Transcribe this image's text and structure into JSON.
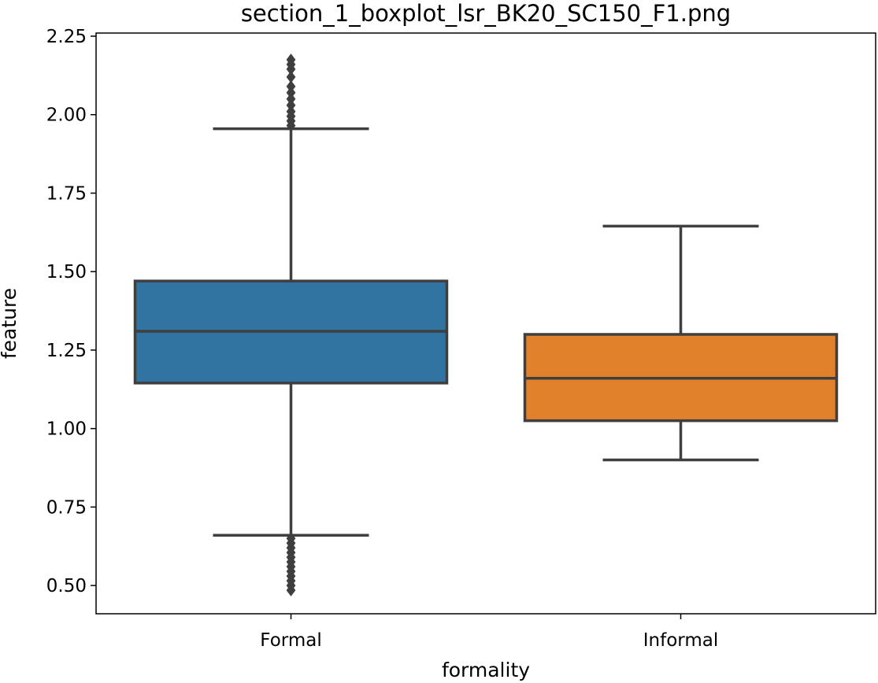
{
  "chart_data": {
    "type": "boxplot",
    "title": "section_1_boxplot_lsr_BK20_SC150_F1.png",
    "xlabel": "formality",
    "ylabel": "feature",
    "ylim": [
      0.41,
      2.26
    ],
    "yticks": [
      0.5,
      0.75,
      1.0,
      1.25,
      1.5,
      1.75,
      2.0,
      2.25
    ],
    "ytick_labels": [
      "0.50",
      "0.75",
      "1.00",
      "1.25",
      "1.50",
      "1.75",
      "2.00",
      "2.25"
    ],
    "grid": false,
    "categories": [
      "Formal",
      "Informal"
    ],
    "boxes": [
      {
        "category": "Formal",
        "whisker_low": 0.66,
        "q1": 1.145,
        "median": 1.31,
        "q3": 1.47,
        "whisker_high": 1.955,
        "color": "#3274a1",
        "outliers": [
          0.485,
          0.5,
          0.515,
          0.53,
          0.545,
          0.56,
          0.575,
          0.59,
          0.605,
          0.62,
          0.635,
          0.65,
          1.965,
          1.98,
          1.995,
          2.01,
          2.03,
          2.05,
          2.07,
          2.09,
          2.12,
          2.145,
          2.16,
          2.175
        ]
      },
      {
        "category": "Informal",
        "whisker_low": 0.9,
        "q1": 1.025,
        "median": 1.16,
        "q3": 1.3,
        "whisker_high": 1.645,
        "color": "#e1812c",
        "outliers": []
      }
    ]
  }
}
